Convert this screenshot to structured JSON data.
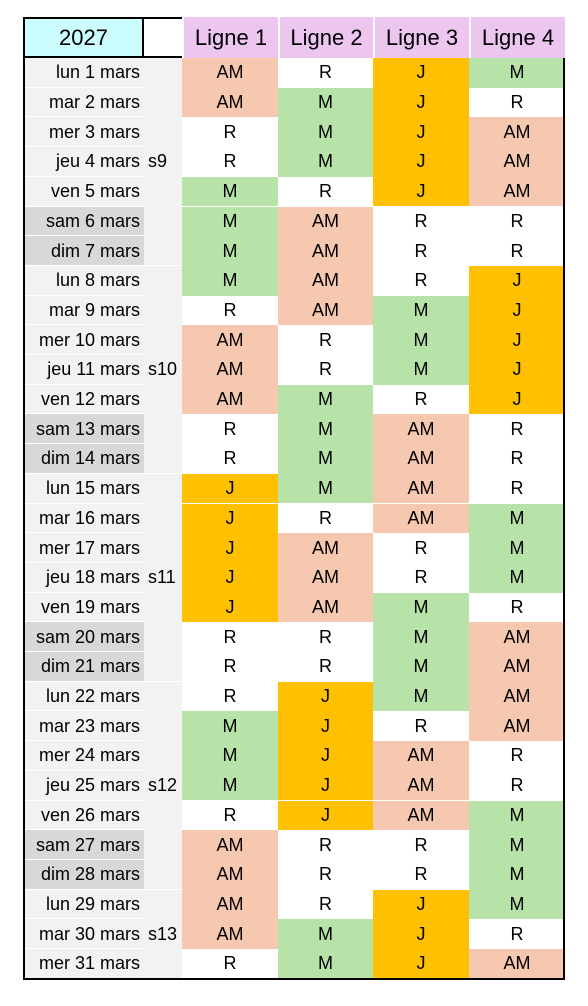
{
  "header": {
    "year": "2027",
    "lines": [
      "Ligne 1",
      "Ligne 2",
      "Ligne 3",
      "Ligne 4"
    ]
  },
  "colors": {
    "M": "#b7e2a8",
    "AM": "#f6c8b0",
    "J": "#fec000",
    "R": "#ffffff",
    "weekday_bg": "#f2f2f2",
    "weekend_bg": "#d8d8d8",
    "year_bg": "#ccfdfe",
    "line_header_bg": "#ecc6ee"
  },
  "weeks": [
    {
      "label": "s9",
      "rows": [
        {
          "date": "lun 1 mars",
          "weekend": false,
          "shifts": [
            "AM",
            "R",
            "J",
            "M"
          ]
        },
        {
          "date": "mar 2 mars",
          "weekend": false,
          "shifts": [
            "AM",
            "M",
            "J",
            "R"
          ]
        },
        {
          "date": "mer 3 mars",
          "weekend": false,
          "shifts": [
            "R",
            "M",
            "J",
            "AM"
          ]
        },
        {
          "date": "jeu 4 mars",
          "weekend": false,
          "shifts": [
            "R",
            "M",
            "J",
            "AM"
          ]
        },
        {
          "date": "ven 5 mars",
          "weekend": false,
          "shifts": [
            "M",
            "R",
            "J",
            "AM"
          ]
        },
        {
          "date": "sam 6 mars",
          "weekend": true,
          "shifts": [
            "M",
            "AM",
            "R",
            "R"
          ]
        },
        {
          "date": "dim 7 mars",
          "weekend": true,
          "shifts": [
            "M",
            "AM",
            "R",
            "R"
          ]
        }
      ]
    },
    {
      "label": "s10",
      "rows": [
        {
          "date": "lun 8 mars",
          "weekend": false,
          "shifts": [
            "M",
            "AM",
            "R",
            "J"
          ]
        },
        {
          "date": "mar 9 mars",
          "weekend": false,
          "shifts": [
            "R",
            "AM",
            "M",
            "J"
          ]
        },
        {
          "date": "mer 10 mars",
          "weekend": false,
          "shifts": [
            "AM",
            "R",
            "M",
            "J"
          ]
        },
        {
          "date": "jeu 11 mars",
          "weekend": false,
          "shifts": [
            "AM",
            "R",
            "M",
            "J"
          ]
        },
        {
          "date": "ven 12 mars",
          "weekend": false,
          "shifts": [
            "AM",
            "M",
            "R",
            "J"
          ]
        },
        {
          "date": "sam 13 mars",
          "weekend": true,
          "shifts": [
            "R",
            "M",
            "AM",
            "R"
          ]
        },
        {
          "date": "dim 14 mars",
          "weekend": true,
          "shifts": [
            "R",
            "M",
            "AM",
            "R"
          ]
        }
      ]
    },
    {
      "label": "s11",
      "rows": [
        {
          "date": "lun 15 mars",
          "weekend": false,
          "shifts": [
            "J",
            "M",
            "AM",
            "R"
          ]
        },
        {
          "date": "mar 16 mars",
          "weekend": false,
          "shifts": [
            "J",
            "R",
            "AM",
            "M"
          ]
        },
        {
          "date": "mer 17 mars",
          "weekend": false,
          "shifts": [
            "J",
            "AM",
            "R",
            "M"
          ]
        },
        {
          "date": "jeu 18 mars",
          "weekend": false,
          "shifts": [
            "J",
            "AM",
            "R",
            "M"
          ]
        },
        {
          "date": "ven 19 mars",
          "weekend": false,
          "shifts": [
            "J",
            "AM",
            "M",
            "R"
          ]
        },
        {
          "date": "sam 20 mars",
          "weekend": true,
          "shifts": [
            "R",
            "R",
            "M",
            "AM"
          ]
        },
        {
          "date": "dim 21 mars",
          "weekend": true,
          "shifts": [
            "R",
            "R",
            "M",
            "AM"
          ]
        }
      ]
    },
    {
      "label": "s12",
      "rows": [
        {
          "date": "lun 22 mars",
          "weekend": false,
          "shifts": [
            "R",
            "J",
            "M",
            "AM"
          ]
        },
        {
          "date": "mar 23 mars",
          "weekend": false,
          "shifts": [
            "M",
            "J",
            "R",
            "AM"
          ]
        },
        {
          "date": "mer 24 mars",
          "weekend": false,
          "shifts": [
            "M",
            "J",
            "AM",
            "R"
          ]
        },
        {
          "date": "jeu 25 mars",
          "weekend": false,
          "shifts": [
            "M",
            "J",
            "AM",
            "R"
          ]
        },
        {
          "date": "ven 26 mars",
          "weekend": false,
          "shifts": [
            "R",
            "J",
            "AM",
            "M"
          ]
        },
        {
          "date": "sam 27 mars",
          "weekend": true,
          "shifts": [
            "AM",
            "R",
            "R",
            "M"
          ]
        },
        {
          "date": "dim 28 mars",
          "weekend": true,
          "shifts": [
            "AM",
            "R",
            "R",
            "M"
          ]
        }
      ]
    },
    {
      "label": "s13",
      "rows": [
        {
          "date": "lun 29 mars",
          "weekend": false,
          "shifts": [
            "AM",
            "R",
            "J",
            "M"
          ]
        },
        {
          "date": "mar 30 mars",
          "weekend": false,
          "shifts": [
            "AM",
            "M",
            "J",
            "R"
          ]
        },
        {
          "date": "mer 31 mars",
          "weekend": false,
          "shifts": [
            "R",
            "M",
            "J",
            "AM"
          ]
        }
      ]
    }
  ]
}
